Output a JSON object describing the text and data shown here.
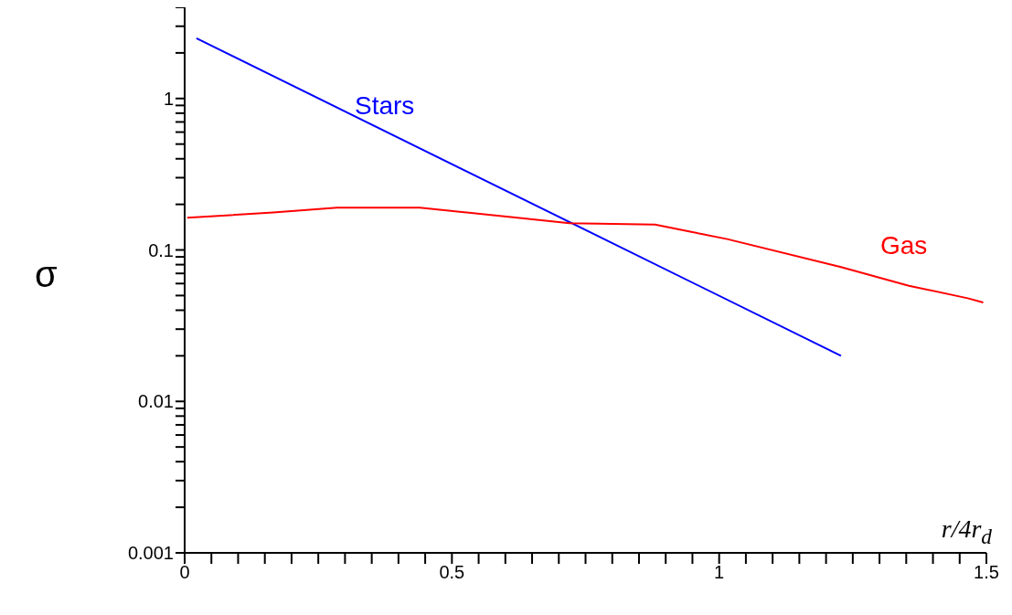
{
  "chart_data": {
    "type": "line",
    "xlabel": "r/4r$_{d}$",
    "ylabel": "σ",
    "xlim": [
      0,
      1.5
    ],
    "ylim": [
      0.001,
      4
    ],
    "log": "y",
    "grid": false,
    "legend": false,
    "marker": "none",
    "line_style": "solid",
    "xticks": [
      0,
      {
        "value": 0.05,
        "label": null
      },
      {
        "value": 0.1,
        "label": null
      },
      {
        "value": 0.15,
        "label": null
      },
      {
        "value": 0.2,
        "label": null
      },
      {
        "value": 0.25,
        "label": null
      },
      {
        "value": 0.3,
        "label": null
      },
      {
        "value": 0.35,
        "label": null
      },
      {
        "value": 0.4,
        "label": null
      },
      {
        "value": 0.45,
        "label": null
      },
      0.5,
      {
        "value": 0.55,
        "label": null
      },
      {
        "value": 0.6,
        "label": null
      },
      {
        "value": 0.65,
        "label": null
      },
      {
        "value": 0.7,
        "label": null
      },
      {
        "value": 0.75,
        "label": null
      },
      {
        "value": 0.8,
        "label": null
      },
      {
        "value": 0.85,
        "label": null
      },
      {
        "value": 0.9,
        "label": null
      },
      {
        "value": 0.95,
        "label": null
      },
      1,
      {
        "value": 1.05,
        "label": null
      },
      {
        "value": 1.1,
        "label": null
      },
      {
        "value": 1.15,
        "label": null
      },
      {
        "value": 1.2,
        "label": null
      },
      {
        "value": 1.25,
        "label": null
      },
      {
        "value": 1.3,
        "label": null
      },
      {
        "value": 1.35,
        "label": null
      },
      {
        "value": 1.4,
        "label": null
      },
      {
        "value": 1.45,
        "label": null
      },
      1.5
    ],
    "yticks": [
      0.001,
      {
        "value": 0.002,
        "label": null
      },
      {
        "value": 0.003,
        "label": null
      },
      {
        "value": 0.004,
        "label": null
      },
      {
        "value": 0.005,
        "label": null
      },
      {
        "value": 0.006,
        "label": null
      },
      {
        "value": 0.007,
        "label": null
      },
      {
        "value": 0.008,
        "label": null
      },
      {
        "value": 0.009,
        "label": null
      },
      0.01,
      {
        "value": 0.02,
        "label": null
      },
      {
        "value": 0.03,
        "label": null
      },
      {
        "value": 0.04,
        "label": null
      },
      {
        "value": 0.05,
        "label": null
      },
      {
        "value": 0.06,
        "label": null
      },
      {
        "value": 0.07,
        "label": null
      },
      {
        "value": 0.08,
        "label": null
      },
      {
        "value": 0.09,
        "label": null
      },
      0.1,
      {
        "value": 0.2,
        "label": null
      },
      {
        "value": 0.3,
        "label": null
      },
      {
        "value": 0.4,
        "label": null
      },
      {
        "value": 0.5,
        "label": null
      },
      {
        "value": 0.6,
        "label": null
      },
      {
        "value": 0.7,
        "label": null
      },
      {
        "value": 0.8,
        "label": null
      },
      {
        "value": 0.9,
        "label": null
      },
      1,
      {
        "value": 2,
        "label": null
      },
      {
        "value": 3,
        "label": null
      },
      {
        "value": 4,
        "label": null
      }
    ],
    "series": [
      {
        "name": "Stars",
        "color": "#0000ff",
        "x": [
          0.022,
          1.228
        ],
        "values": [
          2.5,
          0.02
        ]
      },
      {
        "name": "Gas",
        "color": "#ff0000",
        "x": [
          0.005,
          0.166,
          0.285,
          0.44,
          0.61,
          0.72,
          0.88,
          1.015,
          1.228,
          1.355,
          1.465,
          1.494
        ],
        "values": [
          0.163,
          0.177,
          0.19,
          0.19,
          0.165,
          0.15,
          0.147,
          0.118,
          0.077,
          0.058,
          0.048,
          0.045
        ]
      }
    ]
  }
}
